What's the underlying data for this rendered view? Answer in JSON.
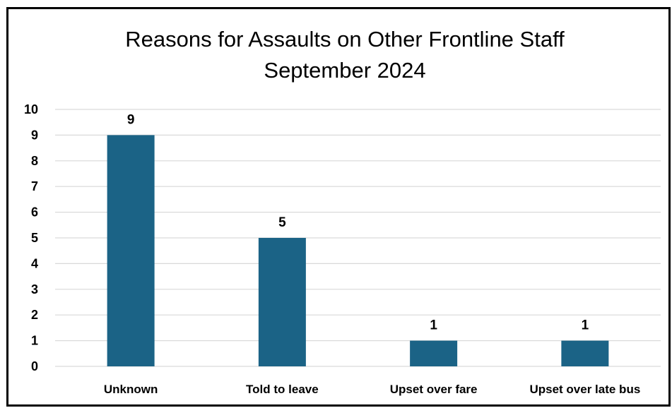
{
  "chart_data": {
    "type": "bar",
    "title_lines": [
      "Reasons for Assaults on Other Frontline Staff",
      "September 2024"
    ],
    "categories": [
      "Unknown",
      "Told to leave",
      "Upset over fare",
      "Upset over late bus"
    ],
    "values": [
      9,
      5,
      1,
      1
    ],
    "ylim": [
      0,
      10
    ],
    "yticks": [
      0,
      1,
      2,
      3,
      4,
      5,
      6,
      7,
      8,
      9,
      10
    ],
    "xlabel": "",
    "ylabel": "",
    "grid": true,
    "legend": "none",
    "bar_color": "#1b6386",
    "grid_color": "#d9d9d9",
    "data_labels": true
  }
}
